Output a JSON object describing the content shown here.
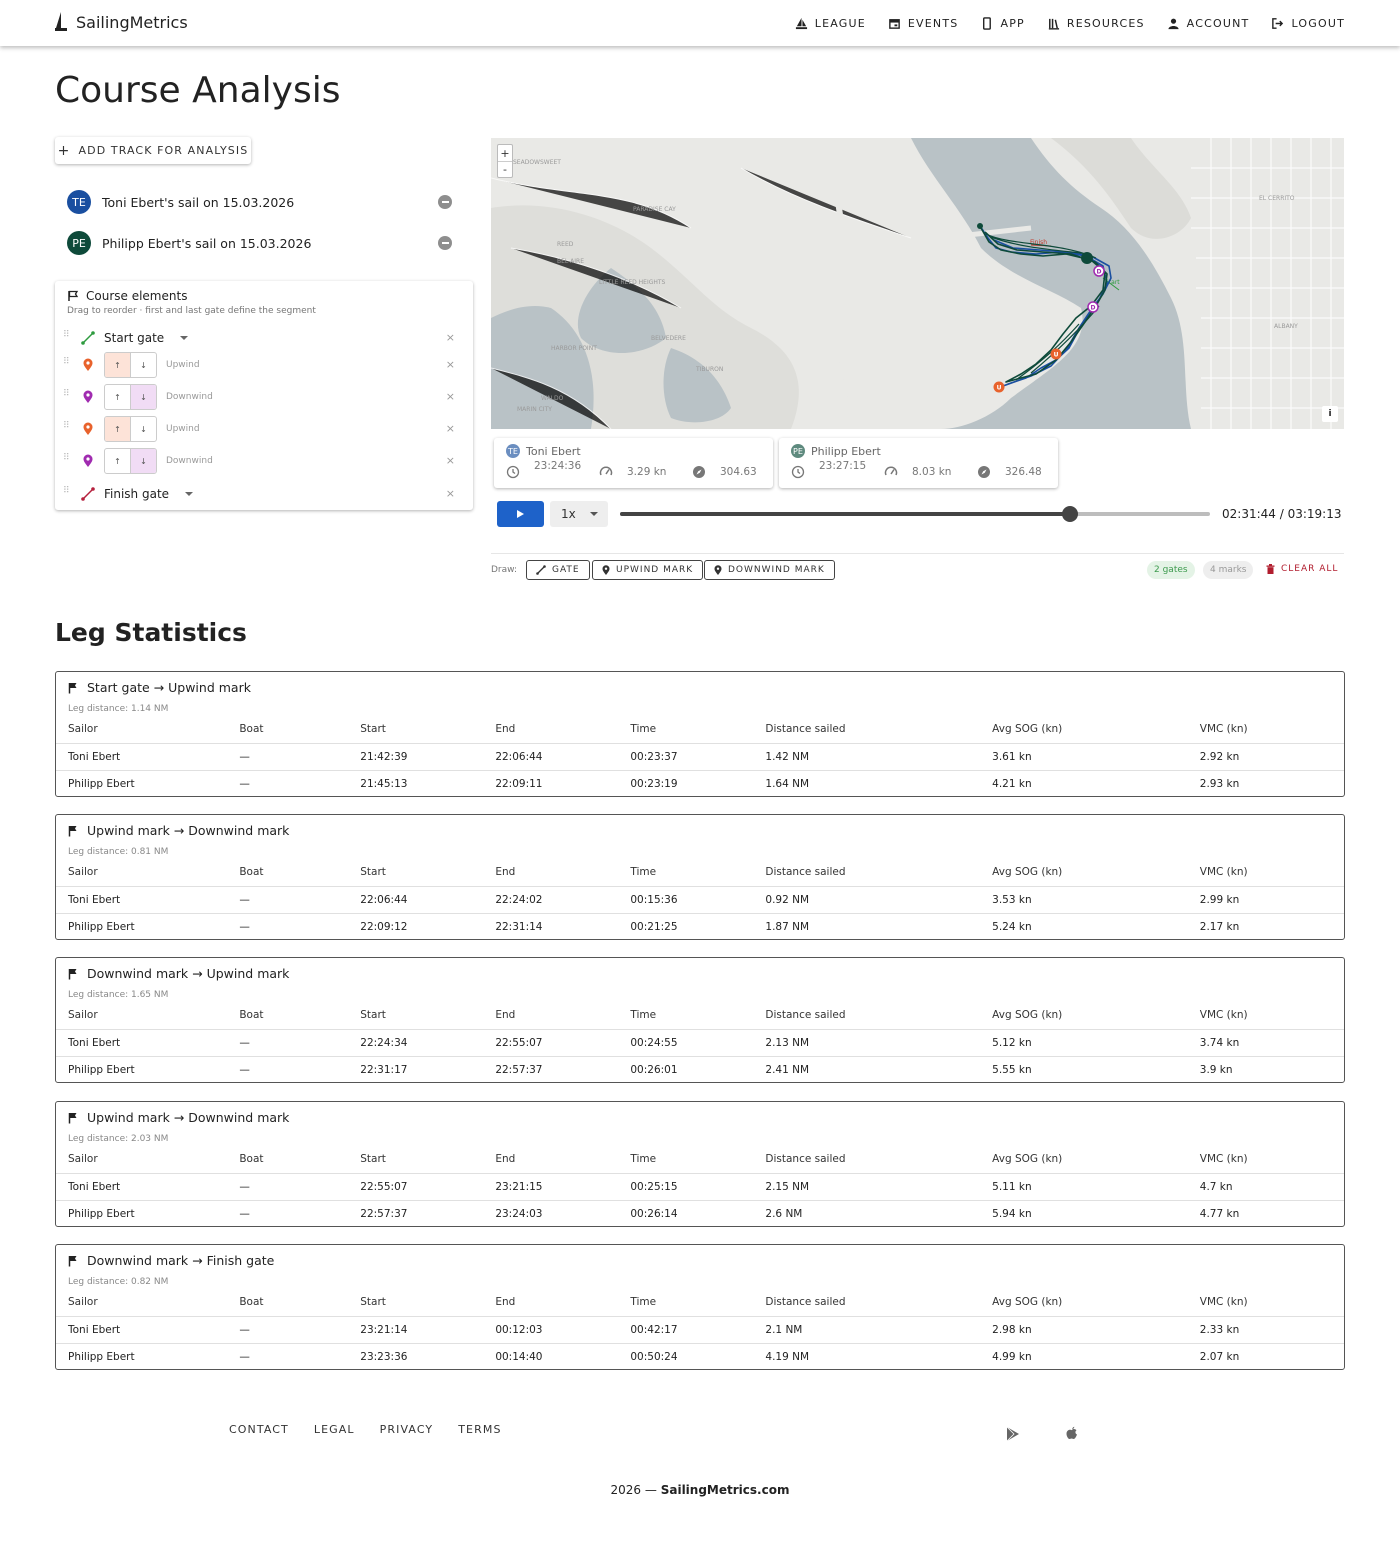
{
  "header": {
    "brand": "SailingMetrics",
    "nav": [
      {
        "label": "LEAGUE",
        "icon": "sailboat-icon"
      },
      {
        "label": "EVENTS",
        "icon": "calendar-icon"
      },
      {
        "label": "APP",
        "icon": "phone-icon"
      },
      {
        "label": "RESOURCES",
        "icon": "library-icon"
      },
      {
        "label": "ACCOUNT",
        "icon": "person-icon"
      },
      {
        "label": "LOGOUT",
        "icon": "logout-icon"
      }
    ]
  },
  "page_title": "Course Analysis",
  "add_track_label": "ADD TRACK FOR ANALYSIS",
  "tracks": [
    {
      "initials": "TE",
      "label": "Toni Ebert's sail on 15.03.2026",
      "color": "#1a4fa0"
    },
    {
      "initials": "PE",
      "label": "Philipp Ebert's sail on 15.03.2026",
      "color": "#0e4a3a"
    }
  ],
  "course": {
    "title": "Course elements",
    "subtitle": "Drag to reorder · first and last gate define the segment",
    "elements": [
      {
        "kind": "gate",
        "label": "Start gate"
      },
      {
        "kind": "mark",
        "label": "Upwind",
        "color": "#e8622c"
      },
      {
        "kind": "mark",
        "label": "Downwind",
        "color": "#a02bb0"
      },
      {
        "kind": "mark",
        "label": "Upwind",
        "color": "#e8622c"
      },
      {
        "kind": "mark",
        "label": "Downwind",
        "color": "#a02bb0"
      },
      {
        "kind": "gate",
        "label": "Finish gate"
      }
    ],
    "remove_symbol": "×"
  },
  "map": {
    "zoom_in": "+",
    "zoom_out": "-",
    "info": "i",
    "place_labels": [
      "SEADOWSWEET",
      "PARADISE CAY",
      "REED",
      "BEL AIRE",
      "LITTLE REED HEIGHTS",
      "HARBOR POINT",
      "BELVEDERE",
      "TIBURON",
      "MARIN CITY",
      "WALDO",
      "EL CERRITO",
      "ALBANY",
      "Finish",
      "Start"
    ]
  },
  "sailor_stats": [
    {
      "initials": "TE",
      "name": "Toni Ebert",
      "color": "#6b8ec0",
      "elapsed": "23:24:36",
      "speed": "3.29 kn",
      "heading": "304.63"
    },
    {
      "initials": "PE",
      "name": "Philipp Ebert",
      "color": "#5e8a7e",
      "elapsed": "23:27:15",
      "speed": "8.03 kn",
      "heading": "326.48"
    }
  ],
  "playback": {
    "speed": "1x",
    "progress": 0.763,
    "time": "02:31:44 / 03:19:13"
  },
  "draw": {
    "label": "Draw:",
    "buttons": [
      "GATE",
      "UPWIND MARK",
      "DOWNWIND MARK"
    ],
    "gates_chip": "2 gates",
    "marks_chip": "4 marks",
    "clear_all": "CLEAR ALL"
  },
  "leg_statistics": {
    "title": "Leg Statistics",
    "columns": [
      "Sailor",
      "Boat",
      "Start",
      "End",
      "Time",
      "Distance sailed",
      "Avg SOG (kn)",
      "VMC (kn)"
    ],
    "legs": [
      {
        "title": "Start gate → Upwind mark",
        "distance": "Leg distance: 1.14 NM",
        "rows": [
          [
            "Toni Ebert",
            "—",
            "21:42:39",
            "22:06:44",
            "00:23:37",
            "1.42 NM",
            "3.61 kn",
            "2.92 kn"
          ],
          [
            "Philipp Ebert",
            "—",
            "21:45:13",
            "22:09:11",
            "00:23:19",
            "1.64 NM",
            "4.21 kn",
            "2.93 kn"
          ]
        ]
      },
      {
        "title": "Upwind mark → Downwind mark",
        "distance": "Leg distance: 0.81 NM",
        "rows": [
          [
            "Toni Ebert",
            "—",
            "22:06:44",
            "22:24:02",
            "00:15:36",
            "0.92 NM",
            "3.53 kn",
            "2.99 kn"
          ],
          [
            "Philipp Ebert",
            "—",
            "22:09:12",
            "22:31:14",
            "00:21:25",
            "1.87 NM",
            "5.24 kn",
            "2.17 kn"
          ]
        ]
      },
      {
        "title": "Downwind mark → Upwind mark",
        "distance": "Leg distance: 1.65 NM",
        "rows": [
          [
            "Toni Ebert",
            "—",
            "22:24:34",
            "22:55:07",
            "00:24:55",
            "2.13 NM",
            "5.12 kn",
            "3.74 kn"
          ],
          [
            "Philipp Ebert",
            "—",
            "22:31:17",
            "22:57:37",
            "00:26:01",
            "2.41 NM",
            "5.55 kn",
            "3.9 kn"
          ]
        ]
      },
      {
        "title": "Upwind mark → Downwind mark",
        "distance": "Leg distance: 2.03 NM",
        "rows": [
          [
            "Toni Ebert",
            "—",
            "22:55:07",
            "23:21:15",
            "00:25:15",
            "2.15 NM",
            "5.11 kn",
            "4.7 kn"
          ],
          [
            "Philipp Ebert",
            "—",
            "22:57:37",
            "23:24:03",
            "00:26:14",
            "2.6 NM",
            "5.94 kn",
            "4.77 kn"
          ]
        ]
      },
      {
        "title": "Downwind mark → Finish gate",
        "distance": "Leg distance: 0.82 NM",
        "rows": [
          [
            "Toni Ebert",
            "—",
            "23:21:14",
            "00:12:03",
            "00:42:17",
            "2.1 NM",
            "2.98 kn",
            "2.33 kn"
          ],
          [
            "Philipp Ebert",
            "—",
            "23:23:36",
            "00:14:40",
            "00:50:24",
            "4.19 NM",
            "4.99 kn",
            "2.07 kn"
          ]
        ]
      }
    ]
  },
  "footer": {
    "links": [
      "CONTACT",
      "LEGAL",
      "PRIVACY",
      "TERMS"
    ],
    "store_icons": [
      "google-play-icon",
      "apple-icon"
    ],
    "year": "2026 —",
    "site": "SailingMetrics.com"
  }
}
